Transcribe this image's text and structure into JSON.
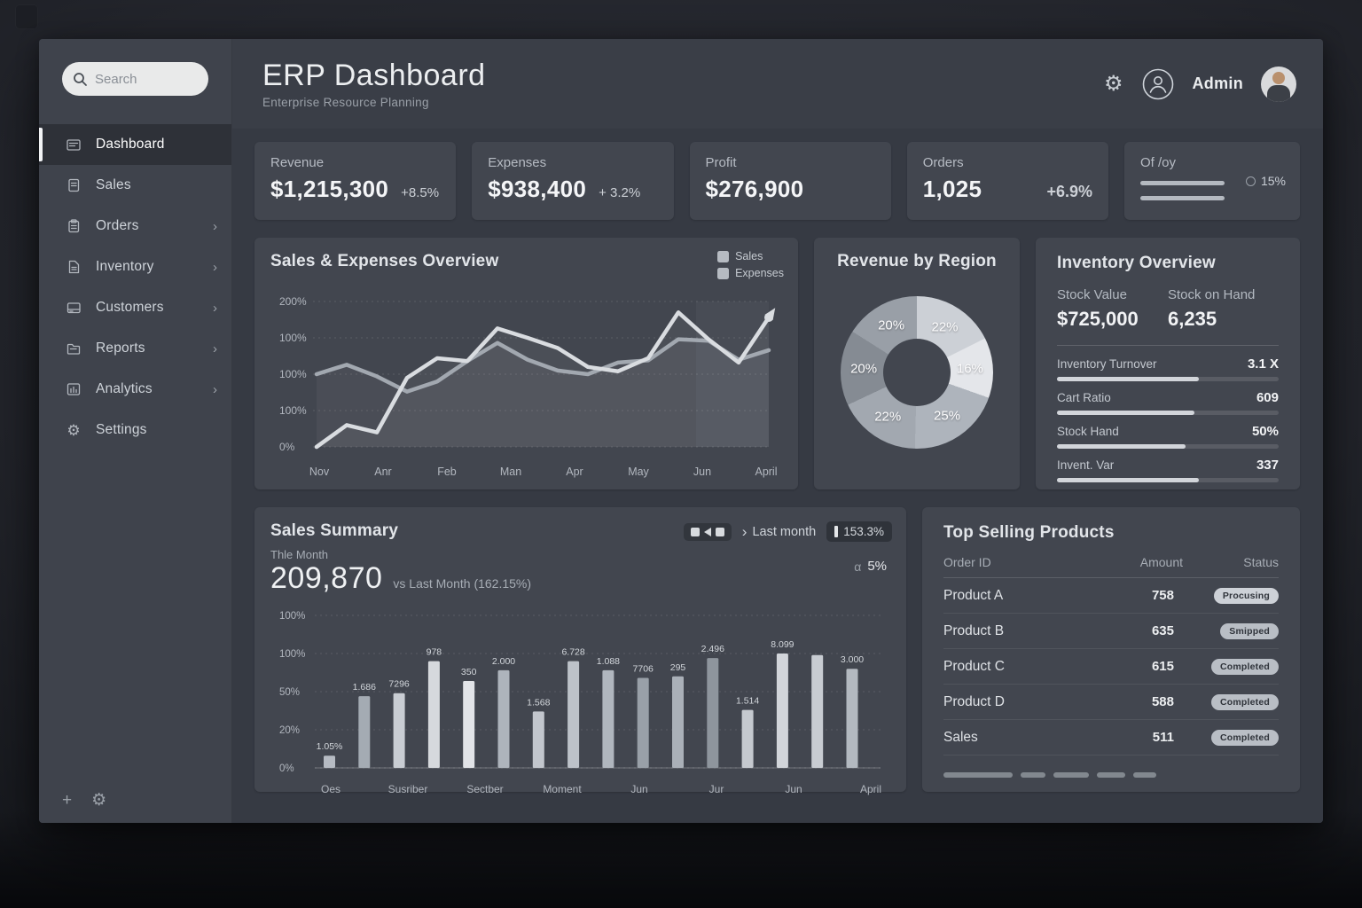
{
  "app": {
    "title": "ERP Dashboard",
    "subtitle": "Enterprise Resource Planning",
    "user": "Admin"
  },
  "sidebar": {
    "search_placeholder": "Search",
    "items": [
      {
        "label": "Dashboard",
        "icon": "dashboard-icon",
        "active": true,
        "chevron": false
      },
      {
        "label": "Sales",
        "icon": "sales-icon",
        "active": false,
        "chevron": false
      },
      {
        "label": "Orders",
        "icon": "orders-icon",
        "active": false,
        "chevron": true
      },
      {
        "label": "Inventory",
        "icon": "inventory-icon",
        "active": false,
        "chevron": true
      },
      {
        "label": "Customers",
        "icon": "customers-icon",
        "active": false,
        "chevron": true
      },
      {
        "label": "Reports",
        "icon": "reports-icon",
        "active": false,
        "chevron": true
      },
      {
        "label": "Analytics",
        "icon": "analytics-icon",
        "active": false,
        "chevron": true
      },
      {
        "label": "Settings",
        "icon": "settings-icon",
        "active": false,
        "chevron": false
      }
    ]
  },
  "kpis": [
    {
      "label": "Revenue",
      "value": "$1,215,300",
      "delta": "+8.5%"
    },
    {
      "label": "Expenses",
      "value": "$938,400",
      "delta": "+ 3.2%"
    },
    {
      "label": "Profit",
      "value": "$276,900",
      "delta": ""
    },
    {
      "label": "Orders",
      "value": "1,025",
      "delta": "+6.9%"
    }
  ],
  "kpi_progress": {
    "label": "Of /oy",
    "indicator": "15%"
  },
  "chart_data": [
    {
      "type": "line",
      "title": "Sales & Expenses Overview",
      "legend": [
        "Sales",
        "Expenses"
      ],
      "legend_position": "top-right",
      "grid": true,
      "ylim": [
        0,
        200
      ],
      "y_tick_labels": [
        "200%",
        "100%",
        "100%",
        "100%",
        "0%"
      ],
      "x_tick_labels": [
        "Nov",
        "Anr",
        "Feb",
        "Man",
        "Apr",
        "May",
        "Jun",
        "April"
      ],
      "series": [
        {
          "name": "Sales",
          "values": [
            0,
            30,
            20,
            95,
            122,
            118,
            163,
            150,
            136,
            110,
            104,
            122,
            185,
            148,
            116,
            178
          ]
        },
        {
          "name": "Expenses",
          "values": [
            100,
            113,
            97,
            76,
            90,
            118,
            143,
            120,
            105,
            100,
            116,
            119,
            148,
            146,
            120,
            133
          ]
        }
      ]
    },
    {
      "type": "pie",
      "title": "Revenue by Region",
      "donut": true,
      "labels": [
        "22%",
        "16%",
        "25%",
        "22%",
        "20%",
        "20%"
      ],
      "values": [
        22,
        16,
        25,
        22,
        20,
        20
      ],
      "colors": [
        "#ccd0d6",
        "#e4e6ea",
        "#aeb4bc",
        "#a2a8b0",
        "#858b93",
        "#999fa7"
      ]
    },
    {
      "type": "bar",
      "title": "Sales Summary",
      "period_label": "Thle Month",
      "period_value": "209,870",
      "comparison": "vs Last Month (162.15%)",
      "control_label": "Last month",
      "control_badge": "153.3%",
      "side_badge": "5%",
      "ylim": [
        0,
        100
      ],
      "y_tick_labels": [
        "100%",
        "100%",
        "50%",
        "20%",
        "0%"
      ],
      "x_tick_labels": [
        "Oes",
        "Susriber",
        "Sectber",
        "Moment",
        "Jun",
        "Jur",
        "Jun",
        "April"
      ],
      "bar_labels": [
        "1.05%",
        "1.686",
        "7296",
        "978",
        "350",
        "2.000",
        "1.568",
        "6.728",
        "1.088",
        "7706",
        "295",
        "2.496",
        "1.514",
        "8.099",
        "",
        "3.000"
      ],
      "values": [
        8,
        47,
        49,
        70,
        57,
        64,
        37,
        70,
        64,
        59,
        60,
        72,
        38,
        75,
        74,
        65
      ]
    }
  ],
  "inventory": {
    "title": "Inventory Overview",
    "stock_value_label": "Stock Value",
    "stock_value": "$725,000",
    "stock_hand_label": "Stock on Hand",
    "stock_hand": "6,235",
    "metrics": [
      {
        "label": "Inventory Turnover",
        "value": "3.1 X",
        "pct": 64
      },
      {
        "label": "Cart Ratio",
        "value": "609",
        "pct": 62
      },
      {
        "label": "Stock Hand",
        "value": "50%",
        "pct": 58
      },
      {
        "label": "Invent. Var",
        "value": "337",
        "pct": 64
      }
    ]
  },
  "top_products": {
    "title": "Top Selling Products",
    "columns": [
      "Order ID",
      "Amount",
      "Status"
    ],
    "rows": [
      {
        "name": "Product A",
        "amount": "758",
        "status": "Procusing"
      },
      {
        "name": "Product B",
        "amount": "635",
        "status": "Smipped"
      },
      {
        "name": "Product C",
        "amount": "615",
        "status": "Completed"
      },
      {
        "name": "Product D",
        "amount": "588",
        "status": "Completed"
      },
      {
        "name": "Sales",
        "amount": "511",
        "status": "Completed"
      }
    ]
  },
  "colors": {
    "line_bright": "#d9dce0",
    "line_dim": "#a2a8b0",
    "bar_light": "#cdd1d7",
    "card_bg": "#42464f"
  }
}
